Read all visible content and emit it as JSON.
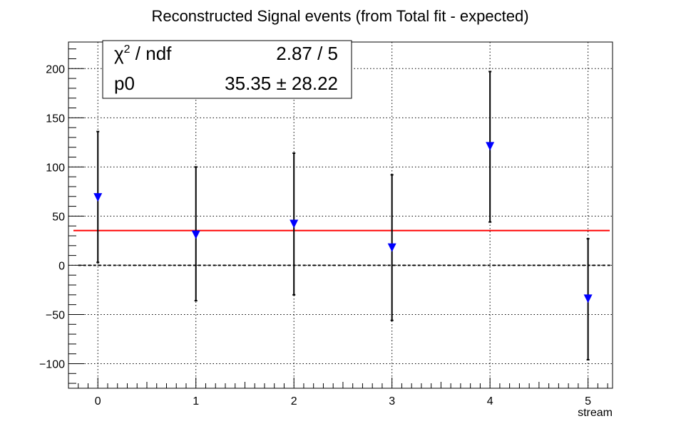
{
  "chart_data": {
    "type": "scatter",
    "title": "Reconstructed Signal events (from Total fit - expected)",
    "xlabel": "stream",
    "ylabel": "",
    "xlim": [
      -0.3,
      5.25
    ],
    "ylim": [
      -125,
      227
    ],
    "x_ticks": [
      "0",
      "1",
      "2",
      "3",
      "4",
      "5"
    ],
    "x_tick_values": [
      0,
      1,
      2,
      3,
      4,
      5
    ],
    "y_ticks": [
      "200",
      "150",
      "100",
      "50",
      "0",
      "−50",
      "−100"
    ],
    "y_tick_values": [
      200,
      150,
      100,
      50,
      0,
      -50,
      -100
    ],
    "grid": true,
    "marker": "triangle-down",
    "marker_color": "#0000ff",
    "errorbar_color": "#000000",
    "series": [
      {
        "x": [
          0,
          1,
          2,
          3,
          4,
          5
        ],
        "y": [
          69,
          31,
          42,
          18,
          121,
          -34
        ],
        "y_low": [
          3,
          -36,
          -30,
          -56,
          44,
          -96
        ],
        "y_high": [
          136,
          100,
          114,
          92,
          197,
          27
        ]
      }
    ],
    "fit": {
      "value": 35.35,
      "color": "#ff0000"
    },
    "zero_line": {
      "value": 0,
      "style": "dashed",
      "color": "#000000"
    },
    "stats_box": {
      "rows": [
        {
          "label_symbol": "χ",
          "label_sup": "2",
          "label_rest": " / ndf",
          "value": "2.87 / 5"
        },
        {
          "label_symbol": "",
          "label_sup": "",
          "label_rest": "p0",
          "value": "35.35 ± 28.22"
        }
      ],
      "placement": "top-left"
    }
  }
}
